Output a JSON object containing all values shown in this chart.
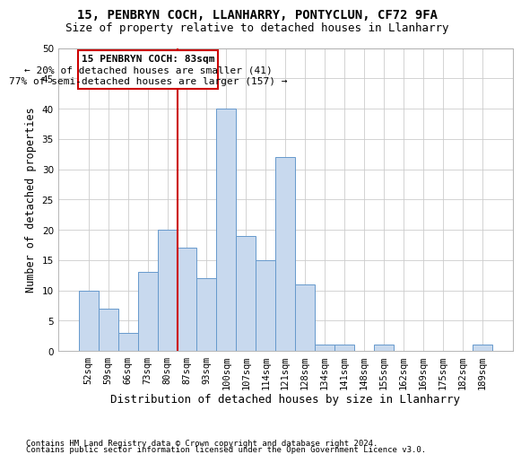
{
  "title1": "15, PENBRYN COCH, LLANHARRY, PONTYCLUN, CF72 9FA",
  "title2": "Size of property relative to detached houses in Llanharry",
  "xlabel": "Distribution of detached houses by size in Llanharry",
  "ylabel": "Number of detached properties",
  "footnote1": "Contains HM Land Registry data © Crown copyright and database right 2024.",
  "footnote2": "Contains public sector information licensed under the Open Government Licence v3.0.",
  "categories": [
    "52sqm",
    "59sqm",
    "66sqm",
    "73sqm",
    "80sqm",
    "87sqm",
    "93sqm",
    "100sqm",
    "107sqm",
    "114sqm",
    "121sqm",
    "128sqm",
    "134sqm",
    "141sqm",
    "148sqm",
    "155sqm",
    "162sqm",
    "169sqm",
    "175sqm",
    "182sqm",
    "189sqm"
  ],
  "values": [
    10,
    7,
    3,
    13,
    20,
    17,
    12,
    40,
    19,
    15,
    32,
    11,
    1,
    1,
    0,
    1,
    0,
    0,
    0,
    0,
    1
  ],
  "bar_color": "#c8d9ee",
  "bar_edge_color": "#6699cc",
  "grid_color": "#cccccc",
  "vline_color": "#cc0000",
  "vline_x": 4.5,
  "box_color": "#cc0000",
  "ylim": [
    0,
    50
  ],
  "yticks": [
    0,
    5,
    10,
    15,
    20,
    25,
    30,
    35,
    40,
    45,
    50
  ],
  "annotation_title": "15 PENBRYN COCH: 83sqm",
  "annotation_line1": "← 20% of detached houses are smaller (41)",
  "annotation_line2": "77% of semi-detached houses are larger (157) →",
  "title1_fontsize": 10,
  "title2_fontsize": 9,
  "xlabel_fontsize": 9,
  "ylabel_fontsize": 8.5,
  "tick_fontsize": 7.5,
  "annotation_fontsize": 8,
  "footnote_fontsize": 6.5
}
